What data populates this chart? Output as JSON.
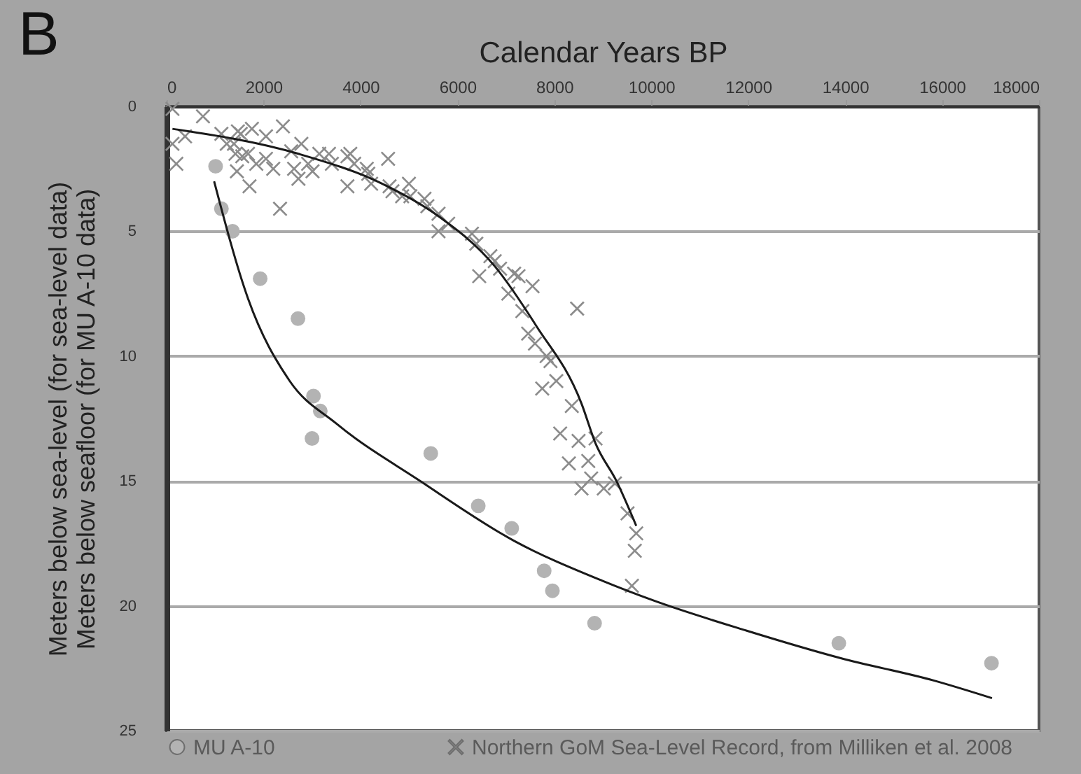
{
  "chart_data": {
    "type": "scatter",
    "xlabel": "Calendar Years BP",
    "ylabel": "Meters below sea-level (for sea-level data)\nMeters below seafloor (for MU A-10 data)",
    "annotations": [
      "B"
    ],
    "xlim": [
      0,
      18000
    ],
    "xticks": [
      0,
      2000,
      4000,
      6000,
      8000,
      10000,
      12000,
      14000,
      16000,
      18000
    ],
    "ylim": [
      25,
      0
    ],
    "yticks": [
      0,
      5,
      10,
      15,
      20,
      25
    ],
    "grid": "y",
    "legend": "bottom",
    "series": [
      {
        "name": "MU A-10",
        "color": "#b3b3b3",
        "marker": "circle",
        "x": [
          1010,
          1130,
          1360,
          1930,
          2710,
          3030,
          3170,
          3000,
          5450,
          6430,
          7120,
          7790,
          7960,
          8830,
          13870,
          17020
        ],
        "values": [
          2.4,
          4.1,
          5.0,
          6.9,
          8.5,
          11.6,
          12.2,
          13.3,
          13.9,
          16.0,
          16.9,
          18.6,
          19.4,
          20.7,
          21.5,
          22.3
        ]
      },
      {
        "name": "Northern GoM Sea-Level Record, from Milliken et al. 2008",
        "color": "#8c8c8c",
        "marker": "cross",
        "x": [
          120,
          750,
          120,
          380,
          200,
          1130,
          1240,
          1470,
          1530,
          1760,
          1390,
          1420,
          1560,
          1680,
          1450,
          1850,
          2050,
          2400,
          1710,
          2050,
          2200,
          2340,
          2570,
          2780,
          2630,
          2720,
          3010,
          2920,
          3150,
          3350,
          3410,
          3730,
          3790,
          3730,
          3870,
          4130,
          4160,
          4220,
          4570,
          4600,
          4660,
          4860,
          5000,
          5030,
          5320,
          5380,
          5610,
          5610,
          5810,
          6300,
          6390,
          6450,
          6680,
          6770,
          6880,
          7170,
          7260,
          7050,
          7550,
          8470,
          7340,
          7460,
          7600,
          7840,
          7920,
          7750,
          8040,
          8360,
          8120,
          8500,
          8850,
          8300,
          8700,
          8760,
          8560,
          9020,
          9250,
          9510,
          9690,
          9660,
          9600
        ],
        "values": [
          0.1,
          0.4,
          1.5,
          1.2,
          2.3,
          1.1,
          1.5,
          1.0,
          1.1,
          0.9,
          1.5,
          1.9,
          2.0,
          1.9,
          2.6,
          2.3,
          1.2,
          0.8,
          3.2,
          2.1,
          2.5,
          4.1,
          1.8,
          1.5,
          2.5,
          2.9,
          2.6,
          2.3,
          1.9,
          1.9,
          2.3,
          2.0,
          1.9,
          3.2,
          2.3,
          2.5,
          2.7,
          3.1,
          2.1,
          3.2,
          3.4,
          3.6,
          3.1,
          3.6,
          3.7,
          4.0,
          4.3,
          5.0,
          4.7,
          5.1,
          5.5,
          6.8,
          6.0,
          6.2,
          6.5,
          6.7,
          6.8,
          7.5,
          7.2,
          8.1,
          8.2,
          9.1,
          9.5,
          10.0,
          10.2,
          11.3,
          11.0,
          12.0,
          13.1,
          13.4,
          13.3,
          14.3,
          14.2,
          14.9,
          15.3,
          15.3,
          15.1,
          16.3,
          17.1,
          17.8,
          19.2
        ]
      },
      {
        "type": "line",
        "color": "#1a1a1a",
        "x": [
          120,
          2720,
          4450,
          5610,
          6770,
          7630,
          8560,
          8850,
          9280,
          9690
        ],
        "values": [
          0.9,
          1.9,
          3.1,
          4.4,
          6.4,
          8.8,
          11.9,
          13.5,
          15.0,
          16.8
        ]
      },
      {
        "type": "line",
        "color": "#1a1a1a",
        "x": [
          980,
          1680,
          2540,
          3500,
          5230,
          7170,
          8990,
          10060,
          11970,
          13910,
          15840,
          17030
        ],
        "values": [
          3.0,
          7.7,
          11.0,
          12.7,
          15.0,
          17.4,
          19.0,
          19.8,
          21.0,
          22.1,
          23.0,
          23.7
        ]
      }
    ]
  }
}
